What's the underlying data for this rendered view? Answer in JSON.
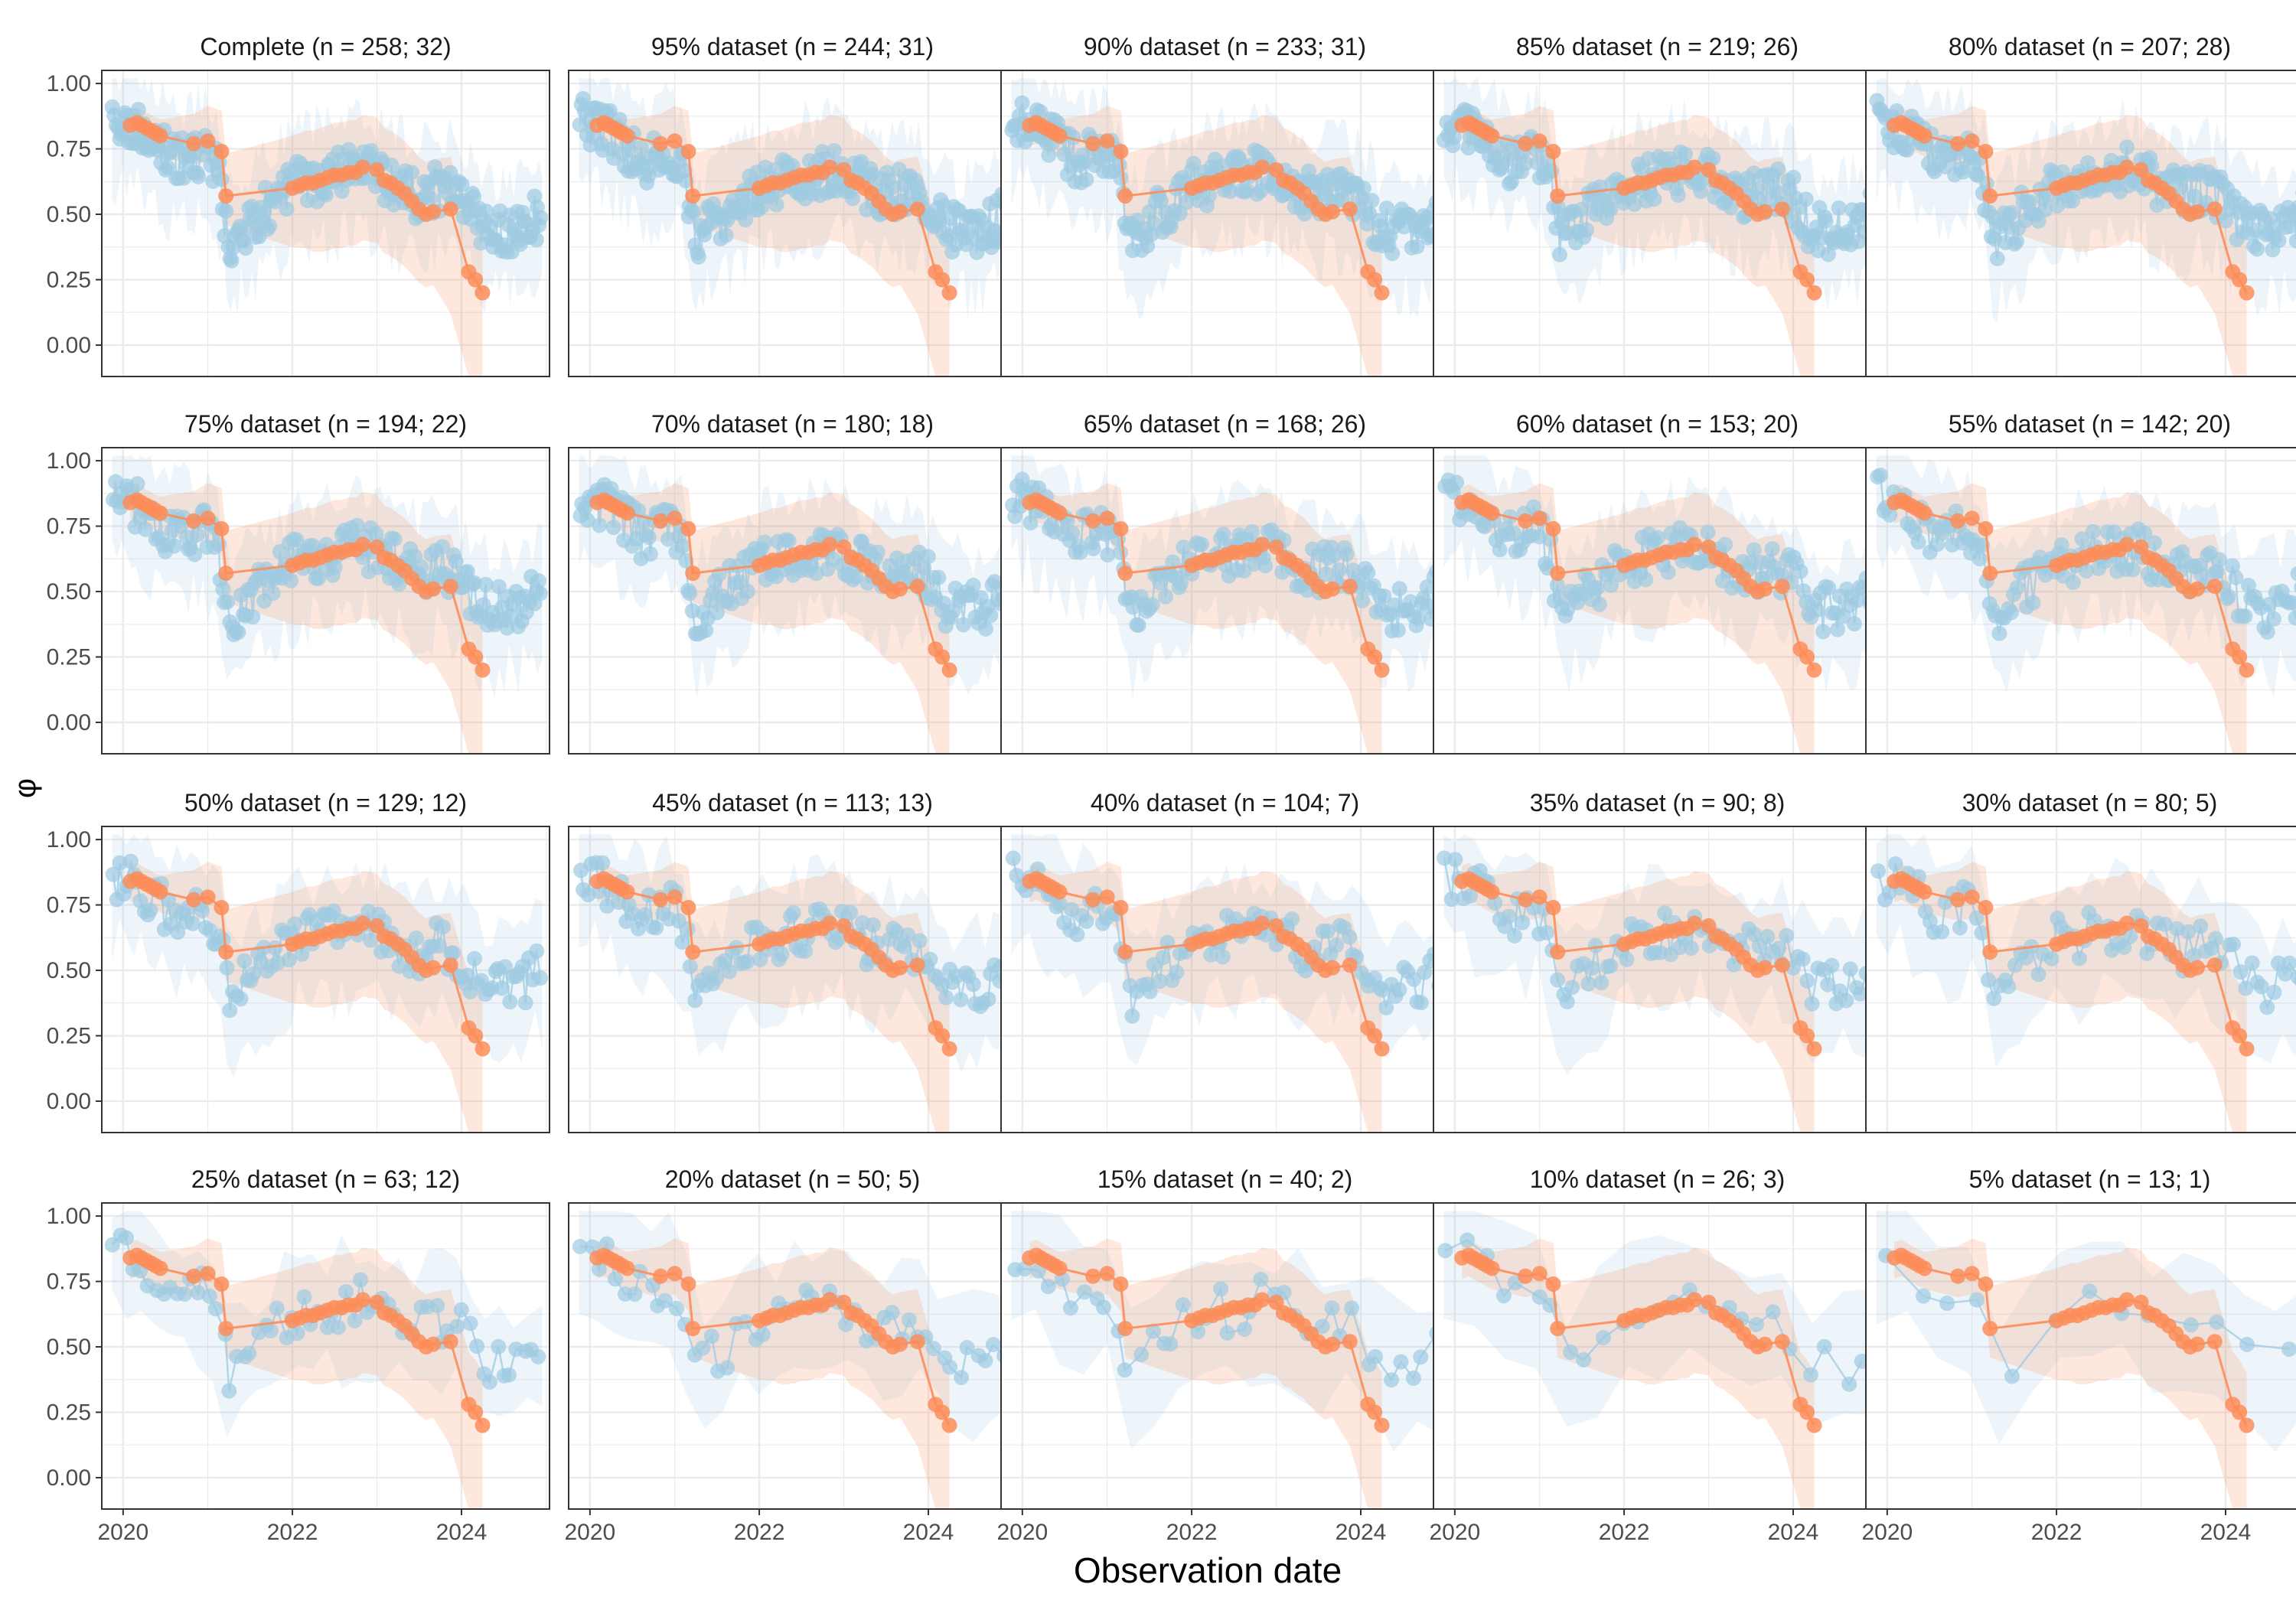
{
  "figure": {
    "xlabel": "Observation date",
    "ylabel": "φ"
  },
  "colors": {
    "observed": "#9ecae1",
    "fitted": "#fc8d59",
    "panel_border": "#333333",
    "grid": "#ebebeb",
    "background": "#ffffff"
  },
  "chart_data": {
    "type": "scatter",
    "layout": "4x5 facet grid",
    "x_axis": {
      "label": "Observation date",
      "type": "date",
      "range": [
        "2019-10-01",
        "2025-01-15"
      ],
      "ticks": [
        "2020",
        "2022",
        "2024"
      ]
    },
    "y_axis": {
      "label": "φ",
      "range": [
        -0.12,
        1.05
      ],
      "ticks": [
        "0.00",
        "0.25",
        "0.50",
        "0.75",
        "1.00"
      ]
    },
    "grid": true,
    "panels": [
      {
        "title": "Complete (n = 258; 32)",
        "fraction": 1.0
      },
      {
        "title": "95% dataset (n = 244; 31)",
        "fraction": 0.95
      },
      {
        "title": "90% dataset (n = 233; 31)",
        "fraction": 0.9
      },
      {
        "title": "85% dataset (n = 219; 26)",
        "fraction": 0.85
      },
      {
        "title": "80% dataset (n = 207; 28)",
        "fraction": 0.8
      },
      {
        "title": "75% dataset (n = 194; 22)",
        "fraction": 0.75
      },
      {
        "title": "70% dataset (n = 180; 18)",
        "fraction": 0.7
      },
      {
        "title": "65% dataset (n = 168; 26)",
        "fraction": 0.65
      },
      {
        "title": "60% dataset (n = 153; 20)",
        "fraction": 0.6
      },
      {
        "title": "55% dataset (n = 142; 20)",
        "fraction": 0.55
      },
      {
        "title": "50% dataset (n = 129; 12)",
        "fraction": 0.5
      },
      {
        "title": "45% dataset (n = 113; 13)",
        "fraction": 0.45
      },
      {
        "title": "40% dataset (n = 104; 7)",
        "fraction": 0.4
      },
      {
        "title": "35% dataset (n = 90; 8)",
        "fraction": 0.35
      },
      {
        "title": "30% dataset (n = 80; 5)",
        "fraction": 0.3
      },
      {
        "title": "25% dataset (n = 63; 12)",
        "fraction": 0.25
      },
      {
        "title": "20% dataset (n = 50; 5)",
        "fraction": 0.2
      },
      {
        "title": "15% dataset (n = 40; 2)",
        "fraction": 0.15
      },
      {
        "title": "10% dataset (n = 26; 3)",
        "fraction": 0.1
      },
      {
        "title": "5% dataset (n = 13; 1)",
        "fraction": 0.05
      }
    ],
    "observed_trend": [
      [
        "2019-11-15",
        0.86
      ],
      [
        "2020-03-01",
        0.83
      ],
      [
        "2020-06-15",
        0.75
      ],
      [
        "2020-09-01",
        0.7
      ],
      [
        "2020-12-15",
        0.74
      ],
      [
        "2021-02-15",
        0.66
      ],
      [
        "2021-04-01",
        0.4
      ],
      [
        "2021-07-01",
        0.47
      ],
      [
        "2021-10-01",
        0.54
      ],
      [
        "2022-01-01",
        0.61
      ],
      [
        "2022-06-01",
        0.64
      ],
      [
        "2022-11-01",
        0.67
      ],
      [
        "2023-03-01",
        0.62
      ],
      [
        "2023-06-15",
        0.57
      ],
      [
        "2023-10-01",
        0.6
      ],
      [
        "2024-01-01",
        0.56
      ],
      [
        "2024-03-15",
        0.45
      ],
      [
        "2024-06-01",
        0.43
      ],
      [
        "2024-09-01",
        0.44
      ],
      [
        "2024-12-01",
        0.5
      ]
    ],
    "fitted_series": {
      "name": "",
      "points": [
        [
          "2020-02-01",
          0.84
        ],
        [
          "2020-03-01",
          0.85
        ],
        [
          "2020-03-20",
          0.84
        ],
        [
          "2020-04-10",
          0.83
        ],
        [
          "2020-05-01",
          0.82
        ],
        [
          "2020-05-20",
          0.81
        ],
        [
          "2020-06-10",
          0.8
        ],
        [
          "2020-11-01",
          0.77
        ],
        [
          "2021-01-01",
          0.78
        ],
        [
          "2021-03-01",
          0.74
        ],
        [
          "2021-03-20",
          0.57
        ],
        [
          "2022-01-01",
          0.6
        ],
        [
          "2022-02-01",
          0.61
        ],
        [
          "2022-03-01",
          0.62
        ],
        [
          "2022-04-01",
          0.62
        ],
        [
          "2022-05-01",
          0.63
        ],
        [
          "2022-06-01",
          0.64
        ],
        [
          "2022-07-01",
          0.65
        ],
        [
          "2022-08-01",
          0.65
        ],
        [
          "2022-09-01",
          0.66
        ],
        [
          "2022-10-01",
          0.66
        ],
        [
          "2022-11-01",
          0.68
        ],
        [
          "2023-01-01",
          0.67
        ],
        [
          "2023-02-01",
          0.63
        ],
        [
          "2023-03-01",
          0.62
        ],
        [
          "2023-04-01",
          0.6
        ],
        [
          "2023-05-01",
          0.58
        ],
        [
          "2023-06-01",
          0.55
        ],
        [
          "2023-07-01",
          0.52
        ],
        [
          "2023-08-01",
          0.5
        ],
        [
          "2023-09-01",
          0.51
        ],
        [
          "2023-11-15",
          0.52
        ],
        [
          "2024-02-01",
          0.28
        ],
        [
          "2024-03-01",
          0.25
        ],
        [
          "2024-04-01",
          0.2
        ]
      ]
    }
  }
}
